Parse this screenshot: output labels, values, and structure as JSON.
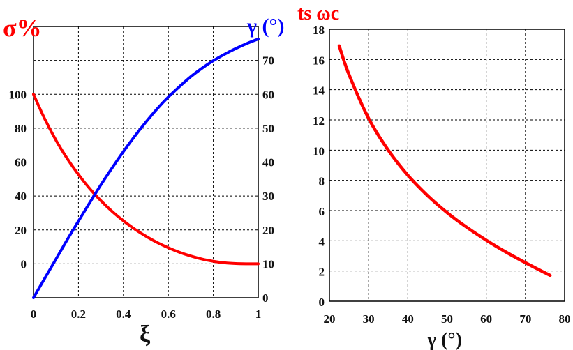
{
  "colors": {
    "red": "#ff0000",
    "blue": "#0000ff",
    "grid": "#000000"
  },
  "chart_data": [
    {
      "type": "line",
      "xlabel": "ξ",
      "ylabel_left": "σ%",
      "ylabel_right": "γ (°)",
      "xlim": [
        0,
        1
      ],
      "ylim_left": [
        -20,
        140
      ],
      "ylim_right": [
        0,
        80
      ],
      "x_ticks": [
        "0",
        "0.2",
        "0.4",
        "0.6",
        "0.8",
        "1"
      ],
      "x_tick_values": [
        0,
        0.2,
        0.4,
        0.6,
        0.8,
        1
      ],
      "left_ticks": [
        "0",
        "20",
        "40",
        "60",
        "80",
        "100"
      ],
      "left_tick_values": [
        0,
        20,
        40,
        60,
        80,
        100
      ],
      "right_ticks": [
        "0",
        "10",
        "20",
        "30",
        "40",
        "50",
        "60",
        "70"
      ],
      "right_tick_values": [
        0,
        10,
        20,
        30,
        40,
        50,
        60,
        70
      ],
      "grid": true,
      "x": [
        0,
        0.05,
        0.1,
        0.15,
        0.2,
        0.25,
        0.3,
        0.35,
        0.4,
        0.45,
        0.5,
        0.55,
        0.6,
        0.65,
        0.7,
        0.75,
        0.8,
        0.85,
        0.9,
        0.95,
        1
      ],
      "series": [
        {
          "name": "σ%",
          "axis": "left",
          "color": "#ff0000",
          "values": [
            100,
            85.5,
            72.9,
            62.1,
            52.7,
            44.4,
            37.2,
            30.9,
            25.4,
            20.5,
            16.3,
            12.6,
            9.5,
            6.8,
            4.6,
            2.8,
            1.5,
            0.6,
            0.15,
            0.01,
            0
          ]
        },
        {
          "name": "γ (°)",
          "axis": "right",
          "color": "#0000ff",
          "values": [
            0,
            5.7,
            11.4,
            17.1,
            22.6,
            28.0,
            33.3,
            38.3,
            43.1,
            47.6,
            51.8,
            55.7,
            59.2,
            62.3,
            65.2,
            67.7,
            69.9,
            71.8,
            73.5,
            75.0,
            76.3
          ]
        }
      ]
    },
    {
      "type": "line",
      "ylabel": "ts ωc",
      "ylabel_parts": [
        "t",
        "s",
        "ω",
        "c"
      ],
      "xlabel": "γ (°)",
      "xlim": [
        20,
        80
      ],
      "ylim": [
        0,
        18
      ],
      "x_ticks": [
        "20",
        "30",
        "40",
        "50",
        "60",
        "70",
        "80"
      ],
      "x_tick_values": [
        20,
        30,
        40,
        50,
        60,
        70,
        80
      ],
      "y_ticks": [
        "0",
        "2",
        "4",
        "6",
        "8",
        "10",
        "12",
        "14",
        "16",
        "18"
      ],
      "y_tick_values": [
        0,
        2,
        4,
        6,
        8,
        10,
        12,
        14,
        16,
        18
      ],
      "grid": true,
      "series": [
        {
          "name": "ts ωc",
          "color": "#ff0000",
          "x": [
            22.5,
            25,
            30,
            35,
            40,
            45,
            50,
            55,
            60,
            65,
            70,
            75,
            76.3
          ],
          "values": [
            16.9,
            15.0,
            12.1,
            10.0,
            8.34,
            7.0,
            5.87,
            4.9,
            4.04,
            3.26,
            2.55,
            1.88,
            1.71
          ]
        }
      ]
    }
  ]
}
